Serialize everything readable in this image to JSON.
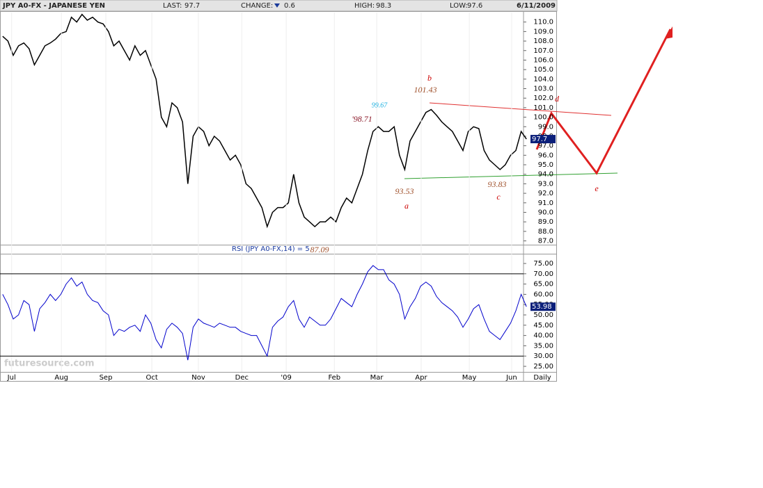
{
  "header": {
    "symbol": "JPY A0-FX - JAPANESE YEN",
    "last_label": "LAST:",
    "last": "97.7",
    "change_label": "CHANGE:",
    "change": "0.6",
    "high_label": "HIGH:",
    "high": "98.3",
    "low_label": "LOW:",
    "low": "97.6",
    "date": "6/11/2009"
  },
  "watermark": "futuresource.com",
  "chart_data": [
    {
      "type": "line",
      "name": "JPY A0-FX",
      "color": "#000000",
      "values": [
        108.5,
        108,
        106.5,
        107.5,
        107.8,
        107.2,
        105.5,
        106.5,
        107.5,
        107.8,
        108.2,
        108.8,
        109,
        110.5,
        110,
        110.8,
        110.2,
        110.5,
        110,
        109.8,
        109,
        107.5,
        108,
        107,
        106,
        107.5,
        106.5,
        107,
        105.5,
        104,
        100,
        99,
        101.5,
        101,
        99.5,
        93,
        98,
        99,
        98.5,
        97,
        98,
        97.5,
        96.5,
        95.5,
        96,
        95,
        93,
        92.5,
        91.5,
        90.5,
        88.5,
        90,
        90.5,
        90.5,
        91,
        94,
        91,
        89.5,
        89,
        88.5,
        89,
        89,
        89.5,
        89,
        90.5,
        91.5,
        91,
        92.5,
        94,
        96.5,
        98.5,
        99,
        98.5,
        98.5,
        99,
        96,
        94.5,
        97.5,
        98.5,
        99.5,
        100.5,
        100.8,
        100.2,
        99.5,
        99,
        98.5,
        97.5,
        96.5,
        98.5,
        99,
        98.8,
        96.5,
        95.5,
        95,
        94.5,
        95,
        96,
        96.5,
        98.5,
        97.7
      ],
      "xlim": [
        -0.5,
        99.5
      ],
      "ylim": [
        86.6,
        111.0
      ],
      "yticks": [
        {
          "value": 87,
          "label": "87.0"
        },
        {
          "value": 88,
          "label": "88.0"
        },
        {
          "value": 89,
          "label": "89.0"
        },
        {
          "value": 90,
          "label": "90.0"
        },
        {
          "value": 91,
          "label": "91.0"
        },
        {
          "value": 92,
          "label": "92.0"
        },
        {
          "value": 93,
          "label": "93.0"
        },
        {
          "value": 94,
          "label": "94.0"
        },
        {
          "value": 95,
          "label": "95.0"
        },
        {
          "value": 96,
          "label": "96.0"
        },
        {
          "value": 97,
          "label": "97.0"
        },
        {
          "value": 98,
          "label": "98.0"
        },
        {
          "value": 99,
          "label": "99.0"
        },
        {
          "value": 100,
          "label": "100.0"
        },
        {
          "value": 101,
          "label": "101.0"
        },
        {
          "value": 102,
          "label": "102.0"
        },
        {
          "value": 103,
          "label": "103.0"
        },
        {
          "value": 104,
          "label": "104.0"
        },
        {
          "value": 105,
          "label": "105.0"
        },
        {
          "value": 106,
          "label": "106.0"
        },
        {
          "value": 107,
          "label": "107.0"
        },
        {
          "value": 108,
          "label": "108.0"
        },
        {
          "value": 109,
          "label": "109.0"
        },
        {
          "value": 110,
          "label": "110.0"
        }
      ],
      "last_value": {
        "value": 97.7,
        "label": "97.7"
      },
      "annotations": [
        "b",
        "101.43",
        "99.67",
        "'98.71",
        "93.53",
        "a",
        "93.83",
        "c",
        "d",
        "e",
        "87.09"
      ]
    },
    {
      "type": "line",
      "name": "RSI (JPY A0-FX,14) = 5",
      "color": "#0000cc",
      "values": [
        60,
        55,
        48,
        50,
        57,
        55,
        42,
        53,
        56,
        60,
        57,
        60,
        65,
        68,
        64,
        66,
        60,
        57,
        56,
        52,
        50,
        40,
        43,
        42,
        44,
        45,
        42,
        50,
        46,
        38,
        34,
        43,
        46,
        44,
        41,
        28,
        44,
        48,
        46,
        45,
        44,
        46,
        45,
        44,
        44,
        42,
        41,
        40,
        40,
        35,
        30,
        44,
        47,
        49,
        54,
        57,
        48,
        44,
        49,
        47,
        45,
        45,
        48,
        53,
        58,
        56,
        54,
        60,
        65,
        71,
        74,
        72,
        72,
        67,
        65,
        60,
        48,
        54,
        58,
        64,
        66,
        64,
        59,
        56,
        54,
        52,
        49,
        44,
        48,
        53,
        55,
        48,
        42,
        40,
        38,
        42,
        46,
        52,
        60,
        54
      ],
      "xlim": [
        -0.5,
        99.5
      ],
      "ylim": [
        22.3,
        79.4
      ],
      "yticks": [
        {
          "value": 25,
          "label": "25.00"
        },
        {
          "value": 30,
          "label": "30.00"
        },
        {
          "value": 35,
          "label": "35.00"
        },
        {
          "value": 40,
          "label": "40.00"
        },
        {
          "value": 45,
          "label": "45.00"
        },
        {
          "value": 50,
          "label": "50.00"
        },
        {
          "value": 55,
          "label": "55.00"
        },
        {
          "value": 60,
          "label": "60.00"
        },
        {
          "value": 65,
          "label": "65.00"
        },
        {
          "value": 70,
          "label": "70.00"
        },
        {
          "value": 75,
          "label": "75.00"
        }
      ],
      "reference_lines": [
        70,
        30
      ],
      "last_value": {
        "value": 53.98,
        "label": "53.98"
      },
      "xticks": [
        {
          "value": 1.7,
          "label": "Jul"
        },
        {
          "value": 11.1,
          "label": "Aug"
        },
        {
          "value": 19.5,
          "label": "Sep"
        },
        {
          "value": 28.2,
          "label": "Oct"
        },
        {
          "value": 37,
          "label": "Nov"
        },
        {
          "value": 45.2,
          "label": "Dec"
        },
        {
          "value": 53.6,
          "label": "'09"
        },
        {
          "value": 62.7,
          "label": "Feb"
        },
        {
          "value": 70.7,
          "label": "Mar"
        },
        {
          "value": 79.1,
          "label": "Apr"
        },
        {
          "value": 88.2,
          "label": "May"
        },
        {
          "value": 96.2,
          "label": "Jun"
        }
      ],
      "period": "Daily"
    }
  ]
}
